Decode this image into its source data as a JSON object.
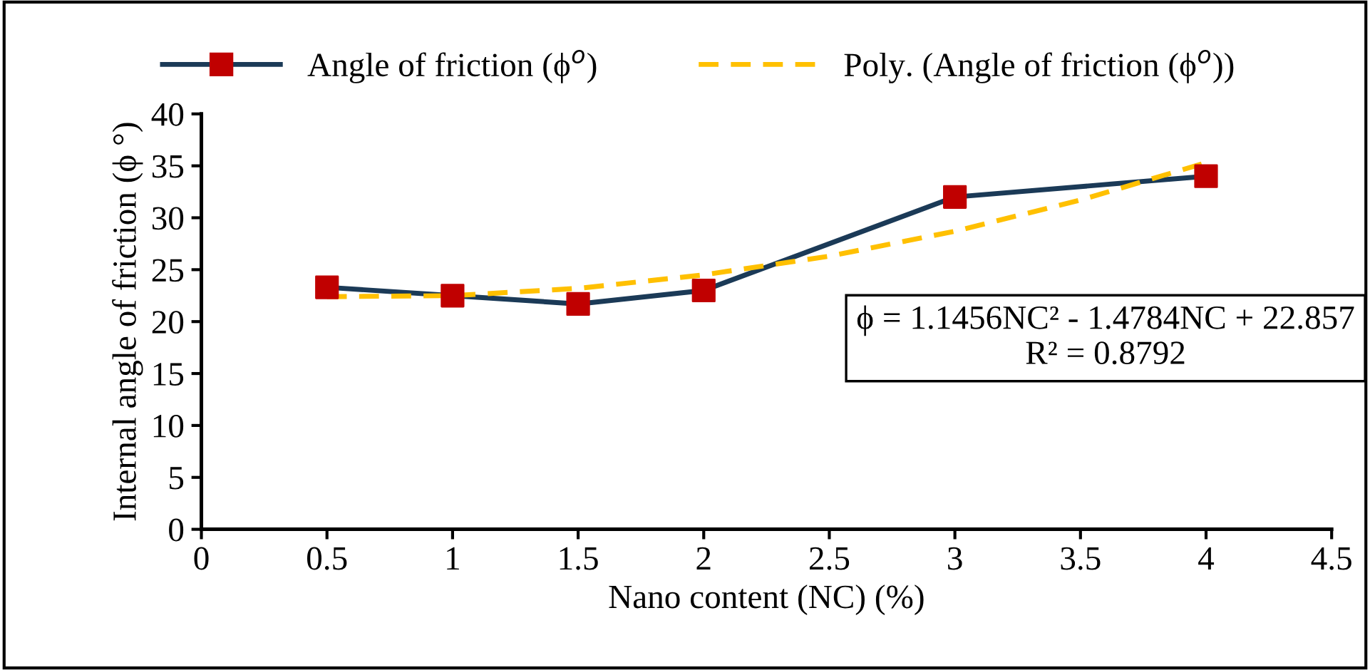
{
  "chart_data": {
    "type": "line",
    "xlabel": "Nano content (NC) (%)",
    "ylabel": "Internal angle of friction (ϕ °)",
    "series": [
      {
        "name": "Angle of friction (ϕ$^{o}$)",
        "color": "#1b3a57",
        "marker": "square",
        "colors": [
          "#c00000",
          "#c00000",
          "#c00000",
          "#c00000",
          "#c00000",
          "#c00000"
        ],
        "line_style": "solid",
        "x": [
          0.5,
          1,
          1.5,
          2,
          3,
          4
        ],
        "values": [
          23.3,
          22.5,
          21.7,
          23.0,
          32.0,
          34.0
        ]
      },
      {
        "name": "Poly. (Angle of friction (ϕ$^{o}$))",
        "color": "#ffc000",
        "marker": "none",
        "line_style": "dashed",
        "x": [
          0.5,
          1,
          1.5,
          2,
          2.5,
          3,
          3.5,
          4
        ],
        "values": [
          22.4,
          22.5,
          23.2,
          24.5,
          26.3,
          28.7,
          31.7,
          35.3
        ]
      }
    ],
    "xlim": [
      0,
      4.5
    ],
    "xticks": [
      0,
      0.5,
      1,
      1.5,
      2,
      2.5,
      3,
      3.5,
      4,
      4.5
    ],
    "ylim": [
      0,
      40
    ],
    "yticks": [
      0,
      5,
      10,
      15,
      20,
      25,
      30,
      35,
      40
    ],
    "annotations": [
      "ϕ = 1.1456NC² - 1.4784NC + 22.857\nR² = 0.8792"
    ],
    "legend": "top",
    "grid": false
  }
}
